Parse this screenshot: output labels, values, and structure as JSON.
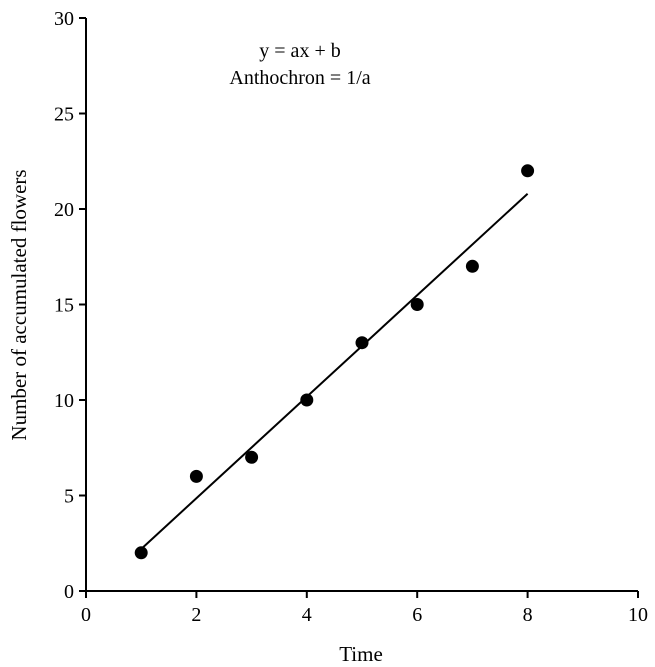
{
  "chart_data": {
    "type": "scatter",
    "title": "",
    "xlabel": "Time",
    "ylabel": "Number of accumulated flowers",
    "xlim": [
      0,
      10
    ],
    "ylim": [
      0,
      30
    ],
    "x_ticks": [
      "0",
      "2",
      "4",
      "6",
      "8",
      "10"
    ],
    "y_ticks": [
      "0",
      "5",
      "10",
      "15",
      "20",
      "25",
      "30"
    ],
    "grid": false,
    "legend": "none",
    "series": [
      {
        "x": [
          1,
          2,
          3,
          4,
          5,
          6,
          7,
          8
        ],
        "y": [
          2,
          6,
          7,
          10,
          13,
          15,
          17,
          22
        ],
        "marker_color": "#000000"
      }
    ],
    "fit_line": {
      "x": [
        1,
        8
      ],
      "y": [
        2.2,
        20.8
      ],
      "color": "#000000"
    },
    "annotations": [
      "y = ax + b",
      "Anthochron = 1/a"
    ]
  }
}
